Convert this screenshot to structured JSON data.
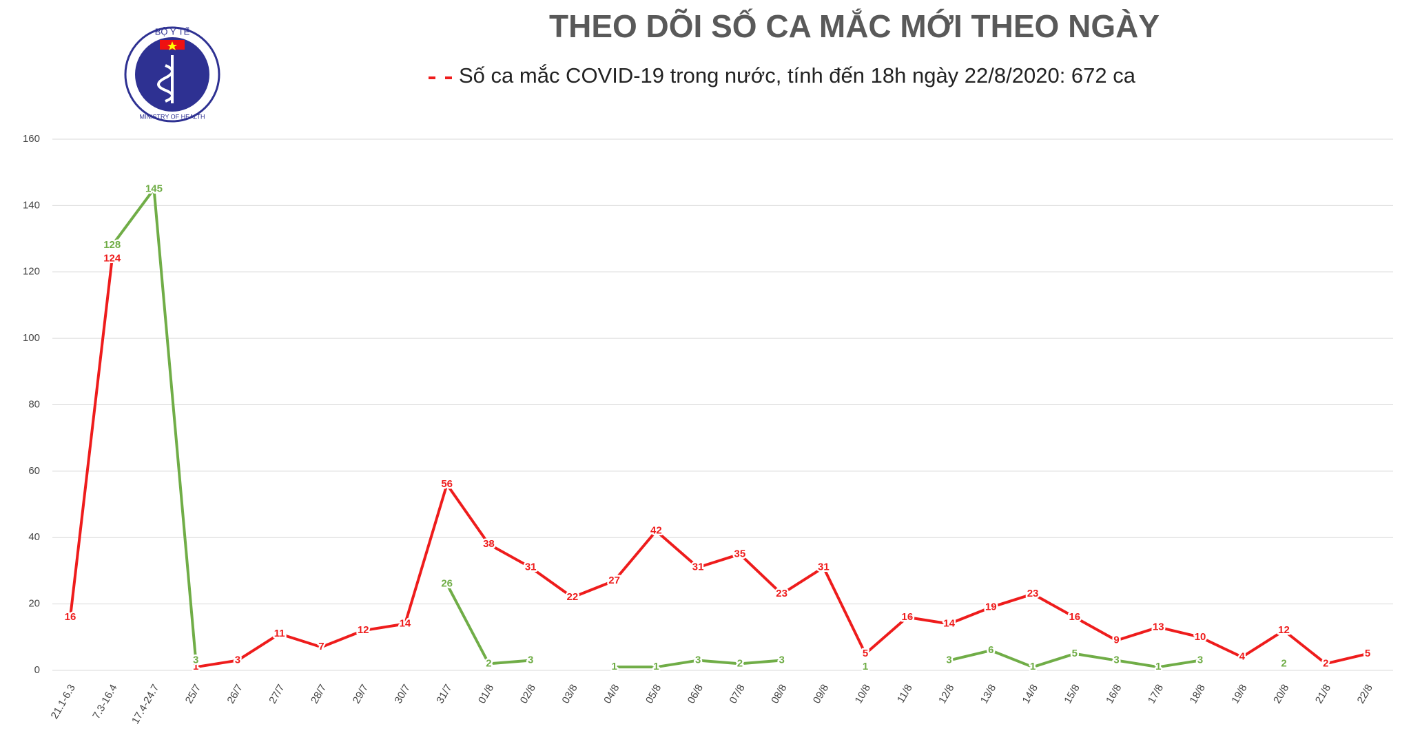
{
  "logo": {
    "top": "BỘ Y TẾ",
    "bottom": "MINISTRY OF HEALTH"
  },
  "chart_data": {
    "type": "line",
    "title": "THEO DÕI SỐ CA MẮC MỚI THEO NGÀY",
    "categories": [
      "21.1-6.3",
      "7.3-16.4",
      "17.4-24.7",
      "25/7",
      "26/7",
      "27/7",
      "28/7",
      "29/7",
      "30/7",
      "31/7",
      "01/8",
      "02/8",
      "03/8",
      "04/8",
      "05/8",
      "06/8",
      "07/8",
      "08/8",
      "09/8",
      "10/8",
      "11/8",
      "12/8",
      "13/8",
      "14/8",
      "15/8",
      "16/8",
      "17/8",
      "18/8",
      "19/8",
      "20/8",
      "21/8",
      "22/8"
    ],
    "series": [
      {
        "name": "Số ca mắc COVID-19 trong nước, tính đến 18h ngày 22/8/2020: 672 ca",
        "color": "#ee1c1c",
        "values": [
          16,
          124,
          null,
          1,
          3,
          11,
          7,
          12,
          14,
          56,
          38,
          31,
          22,
          27,
          42,
          31,
          35,
          23,
          31,
          5,
          16,
          14,
          19,
          23,
          16,
          9,
          13,
          10,
          4,
          12,
          2,
          5
        ]
      },
      {
        "color": "#70ad47",
        "values": [
          null,
          128,
          145,
          3,
          null,
          null,
          null,
          null,
          null,
          26,
          2,
          3,
          null,
          1,
          1,
          3,
          2,
          3,
          null,
          1,
          null,
          3,
          6,
          1,
          5,
          3,
          1,
          3,
          null,
          2,
          null,
          null
        ]
      }
    ],
    "ylim": [
      0,
      160
    ],
    "yticks": [
      0,
      20,
      40,
      60,
      80,
      100,
      120,
      140,
      160
    ],
    "grid": true,
    "legend": "top"
  }
}
